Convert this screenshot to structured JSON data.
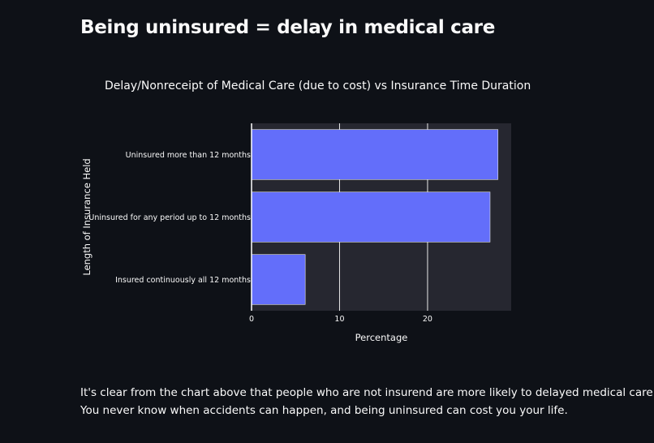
{
  "page": {
    "heading": "Being uninsured = delay in medical care",
    "paragraph_line1": "It's clear from the chart above that people who are not insurend are more likely to delayed medical care.",
    "paragraph_line2": "You never know when accidents can happen, and being uninsured can cost you your life."
  },
  "colors": {
    "background": "#0e1117",
    "plot_background": "#262730",
    "bar": "#636efa",
    "text": "#fafafa"
  },
  "chart_data": {
    "type": "bar",
    "orientation": "horizontal",
    "title": "Delay/Nonreceipt of Medical Care (due to cost) vs Insurance Time Duration",
    "xlabel": "Percentage",
    "ylabel": "Length of Insurance Held",
    "categories": [
      "Uninsured more than 12 months",
      "Uninsured for any period up to 12 months",
      "Insured continuously all 12 months"
    ],
    "values": [
      28.0,
      27.1,
      6.1
    ],
    "xlim": [
      0,
      29.5
    ],
    "xticks": [
      0,
      10,
      20
    ],
    "grid": "vertical"
  }
}
